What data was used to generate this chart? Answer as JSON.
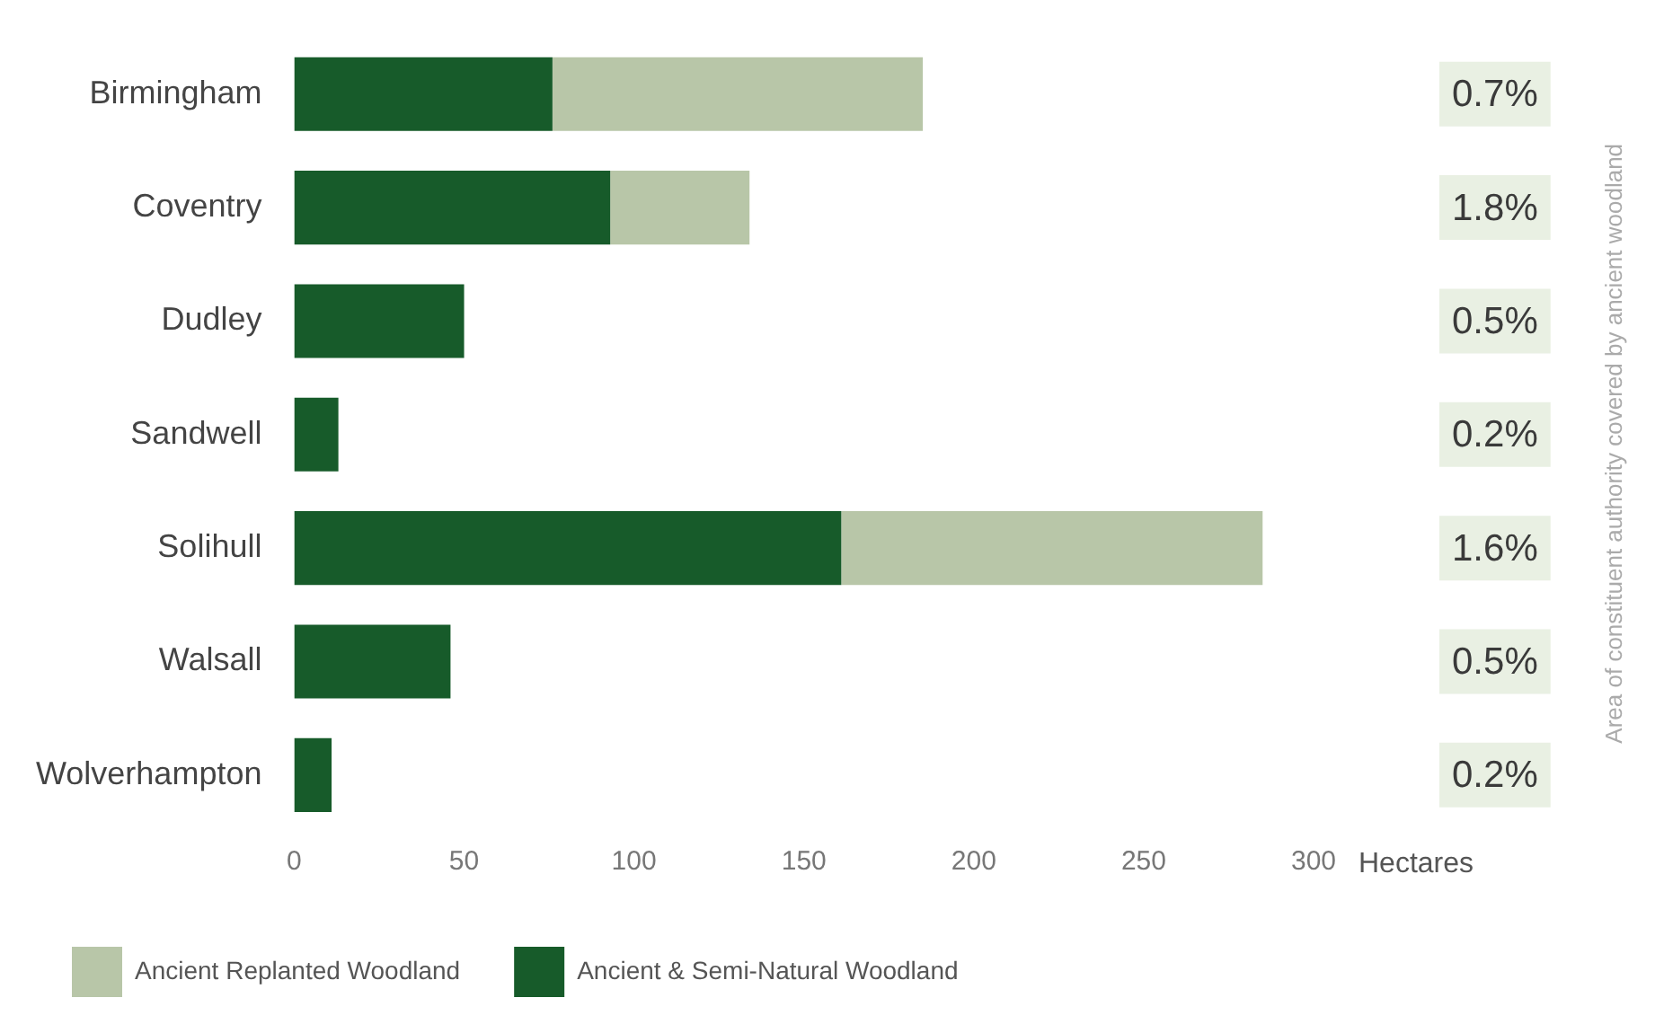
{
  "chart_data": {
    "type": "bar",
    "orientation": "horizontal",
    "stacked": true,
    "categories": [
      "Birmingham",
      "Coventry",
      "Dudley",
      "Sandwell",
      "Solihull",
      "Walsall",
      "Wolverhampton"
    ],
    "series": [
      {
        "name": "Ancient & Semi-Natural Woodland",
        "color": "#175b2a",
        "values": [
          76,
          93,
          50,
          13,
          161,
          46,
          11
        ]
      },
      {
        "name": "Ancient Replanted Woodland",
        "color": "#b8c6a8",
        "values": [
          109,
          41,
          null,
          null,
          124,
          null,
          null
        ]
      }
    ],
    "xlim": [
      0,
      300
    ],
    "xticks": [
      0,
      50,
      100,
      150,
      200,
      250,
      300
    ],
    "xlabel": "Hectares",
    "annotations": [
      "0.7%",
      "1.8%",
      "0.5%",
      "0.2%",
      "1.6%",
      "0.5%",
      "0.2%",
      "Area of constituent authority covered by ancient woodland"
    ],
    "grid": false,
    "legend": "bottom"
  }
}
